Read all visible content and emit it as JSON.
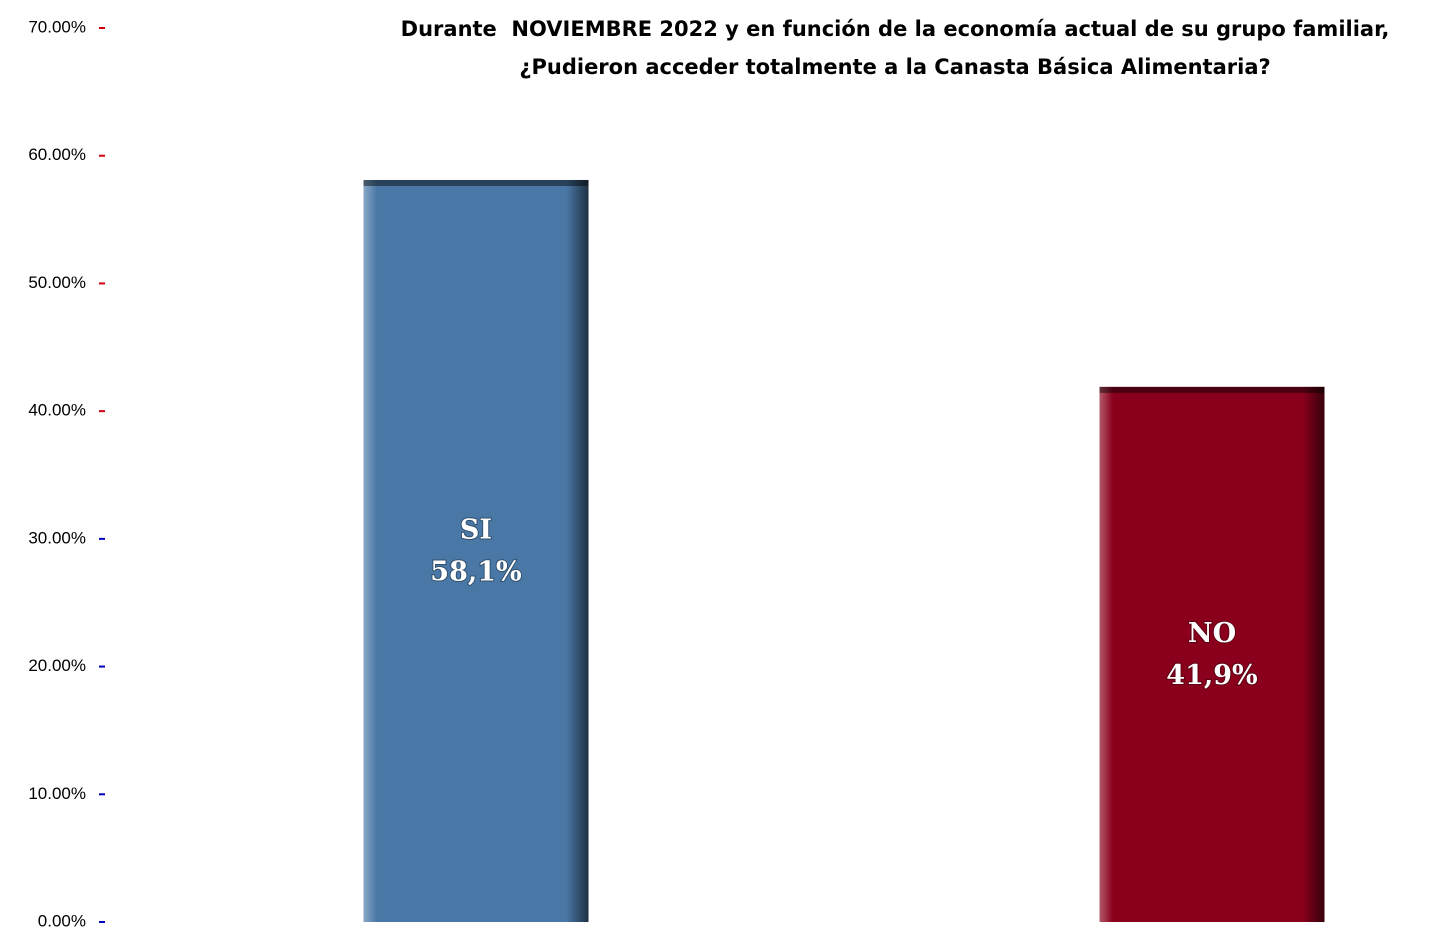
{
  "chart_data": {
    "type": "bar",
    "title": [
      "Durante  NOVIEMBRE 2022 y en función de la economía actual de su grupo familiar,",
      "¿Pudieron acceder totalmente a la Canasta Básica Alimentaria?"
    ],
    "categories": [
      "SI",
      "NO"
    ],
    "values": [
      58.1,
      41.9
    ],
    "value_labels": [
      "58,1%",
      "41,9%"
    ],
    "colors": [
      "#4a78a6",
      "#8a001c"
    ],
    "ylim": [
      0,
      70
    ],
    "yticks": [
      {
        "value": 0,
        "label": "0.00%"
      },
      {
        "value": 10,
        "label": "10.00%"
      },
      {
        "value": 20,
        "label": "20.00%"
      },
      {
        "value": 30,
        "label": "30.00%"
      },
      {
        "value": 40,
        "label": "40.00%"
      },
      {
        "value": 50,
        "label": "50.00%"
      },
      {
        "value": 60,
        "label": "60.00%"
      },
      {
        "value": 70,
        "label": "70.00%"
      }
    ],
    "grid": false
  }
}
